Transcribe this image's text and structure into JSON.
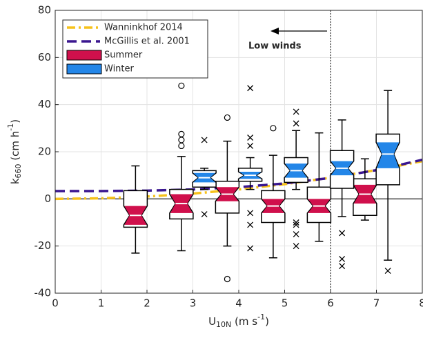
{
  "chart_data": {
    "type": "boxplot",
    "xlabel": {
      "base": "U",
      "sub": "10N",
      "mid": " (m s",
      "sup": "-1",
      "end": ")"
    },
    "ylabel": {
      "base": "k",
      "sub": "660",
      "mid": " (cm h",
      "sup": "-1",
      "end": ")"
    },
    "xlim": [
      0,
      8
    ],
    "xticks": [
      0,
      1,
      2,
      3,
      4,
      5,
      6,
      7,
      8
    ],
    "ylim": [
      -40,
      80
    ],
    "yticks": [
      -40,
      -20,
      0,
      20,
      40,
      60,
      80
    ],
    "grid": true,
    "legend": "upper left",
    "vline": 6,
    "hline": 0,
    "annotation": "Low winds",
    "lines": [
      {
        "name": "Wanninkhof 2014",
        "color": "#f6c21b",
        "dash": "dash-dot",
        "x": [
          0,
          1,
          2,
          3,
          4,
          5,
          6,
          7,
          8
        ],
        "values": [
          0,
          0.25,
          1,
          2.25,
          4,
          6.25,
          9,
          12.25,
          16
        ]
      },
      {
        "name": "McGillis et al. 2001",
        "color": "#3a168f",
        "dash": "dash",
        "x": [
          0,
          1,
          2,
          3,
          4,
          5,
          6,
          7,
          8
        ],
        "values": [
          3.3,
          3.33,
          3.51,
          4.0,
          5.0,
          6.55,
          8.9,
          12.2,
          16.6
        ]
      }
    ],
    "series": [
      {
        "name": "Summer",
        "color": "#d0104c",
        "boxes": [
          {
            "x": 1.75,
            "low": -23,
            "q1": -12,
            "notch": [
              -11,
              -3
            ],
            "median": -7,
            "q3": 3.5,
            "high": 14,
            "outliers": [],
            "marker": "circle"
          },
          {
            "x": 2.75,
            "low": -22,
            "q1": -8.5,
            "notch": [
              -6,
              2
            ],
            "median": -2,
            "q3": 4,
            "high": 18,
            "outliers": [
              48,
              27.5,
              25,
              22.5
            ],
            "marker": "circle"
          },
          {
            "x": 3.75,
            "low": -20,
            "q1": -6,
            "notch": [
              -1,
              5
            ],
            "median": 2,
            "q3": 7.5,
            "high": 24.5,
            "outliers": [
              34.5,
              -34
            ],
            "marker": "circle"
          },
          {
            "x": 4.75,
            "low": -25,
            "q1": -10,
            "notch": [
              -6,
              0
            ],
            "median": -3,
            "q3": 3.5,
            "high": 18.5,
            "outliers": [
              30
            ],
            "marker": "circle"
          },
          {
            "x": 5.75,
            "low": -18,
            "q1": -10,
            "notch": [
              -6,
              0
            ],
            "median": -3,
            "q3": 5,
            "high": 28,
            "outliers": [],
            "marker": "circle"
          },
          {
            "x": 6.75,
            "low": -9,
            "q1": -7,
            "notch": [
              -2,
              6
            ],
            "median": 2,
            "q3": 8.5,
            "high": 17,
            "outliers": [],
            "marker": "circle"
          }
        ]
      },
      {
        "name": "Winter",
        "color": "#2386e8",
        "boxes": [
          {
            "x": 3.25,
            "low": 4,
            "q1": 5,
            "notch": [
              7,
              11
            ],
            "median": 9,
            "q3": 12,
            "high": 13,
            "outliers": [
              25,
              -6.5
            ],
            "marker": "cross"
          },
          {
            "x": 4.25,
            "low": 4,
            "q1": 7.5,
            "notch": [
              8.5,
              11.5
            ],
            "median": 10,
            "q3": 13,
            "high": 17.5,
            "outliers": [
              47,
              26,
              22.5,
              -6,
              -11,
              -21
            ],
            "marker": "cross"
          },
          {
            "x": 5.25,
            "low": 4,
            "q1": 7,
            "notch": [
              9,
              15
            ],
            "median": 12,
            "q3": 17.5,
            "high": 29,
            "outliers": [
              37,
              32,
              -10,
              -11,
              -15,
              -20
            ],
            "marker": "cross"
          },
          {
            "x": 6.25,
            "low": -7.5,
            "q1": 4.5,
            "notch": [
              10,
              16
            ],
            "median": 13,
            "q3": 20.5,
            "high": 33.5,
            "outliers": [
              -14.5,
              -25.5,
              -28.5
            ],
            "marker": "cross"
          },
          {
            "x": 7.25,
            "low": -26,
            "q1": 6,
            "notch": [
              13,
              24
            ],
            "median": 19,
            "q3": 27.5,
            "high": 46,
            "outliers": [
              -30.5
            ],
            "marker": "cross"
          }
        ]
      }
    ]
  }
}
